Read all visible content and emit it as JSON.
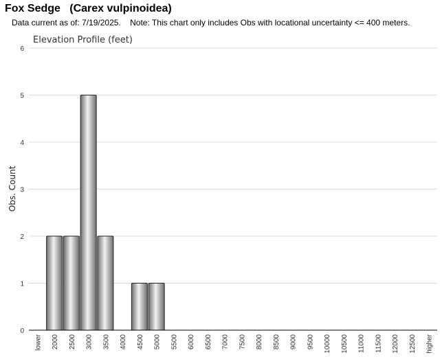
{
  "header": {
    "title": "Fox Sedge   (Carex vulpinoidea)",
    "subtitle": "Data current as of: 7/19/2025.    Note: This chart only includes Obs with locational uncertainty <= 400 meters."
  },
  "chart_data": {
    "type": "bar",
    "title": "Elevation Profile (feet)",
    "xlabel": "",
    "ylabel": "Obs. Count",
    "ylim": [
      0,
      6
    ],
    "yticks": [
      "0",
      "1",
      "2",
      "3",
      "4",
      "5",
      "6"
    ],
    "grid": true,
    "categories": [
      "lower",
      "2000",
      "2500",
      "3000",
      "3500",
      "4000",
      "4500",
      "5000",
      "5500",
      "6000",
      "6500",
      "7000",
      "7500",
      "8000",
      "8500",
      "9000",
      "9500",
      "10000",
      "10500",
      "11000",
      "11500",
      "12000",
      "12500",
      "higher"
    ],
    "values": [
      0,
      2,
      2,
      5,
      2,
      0,
      1,
      1,
      0,
      0,
      0,
      0,
      0,
      0,
      0,
      0,
      0,
      0,
      0,
      0,
      0,
      0,
      0,
      0
    ],
    "colors": {
      "bar_light": "#f2f2f2",
      "bar_dark": "#6e6e6e",
      "bar_stroke": "#222222",
      "grid": "#dddddd"
    }
  }
}
